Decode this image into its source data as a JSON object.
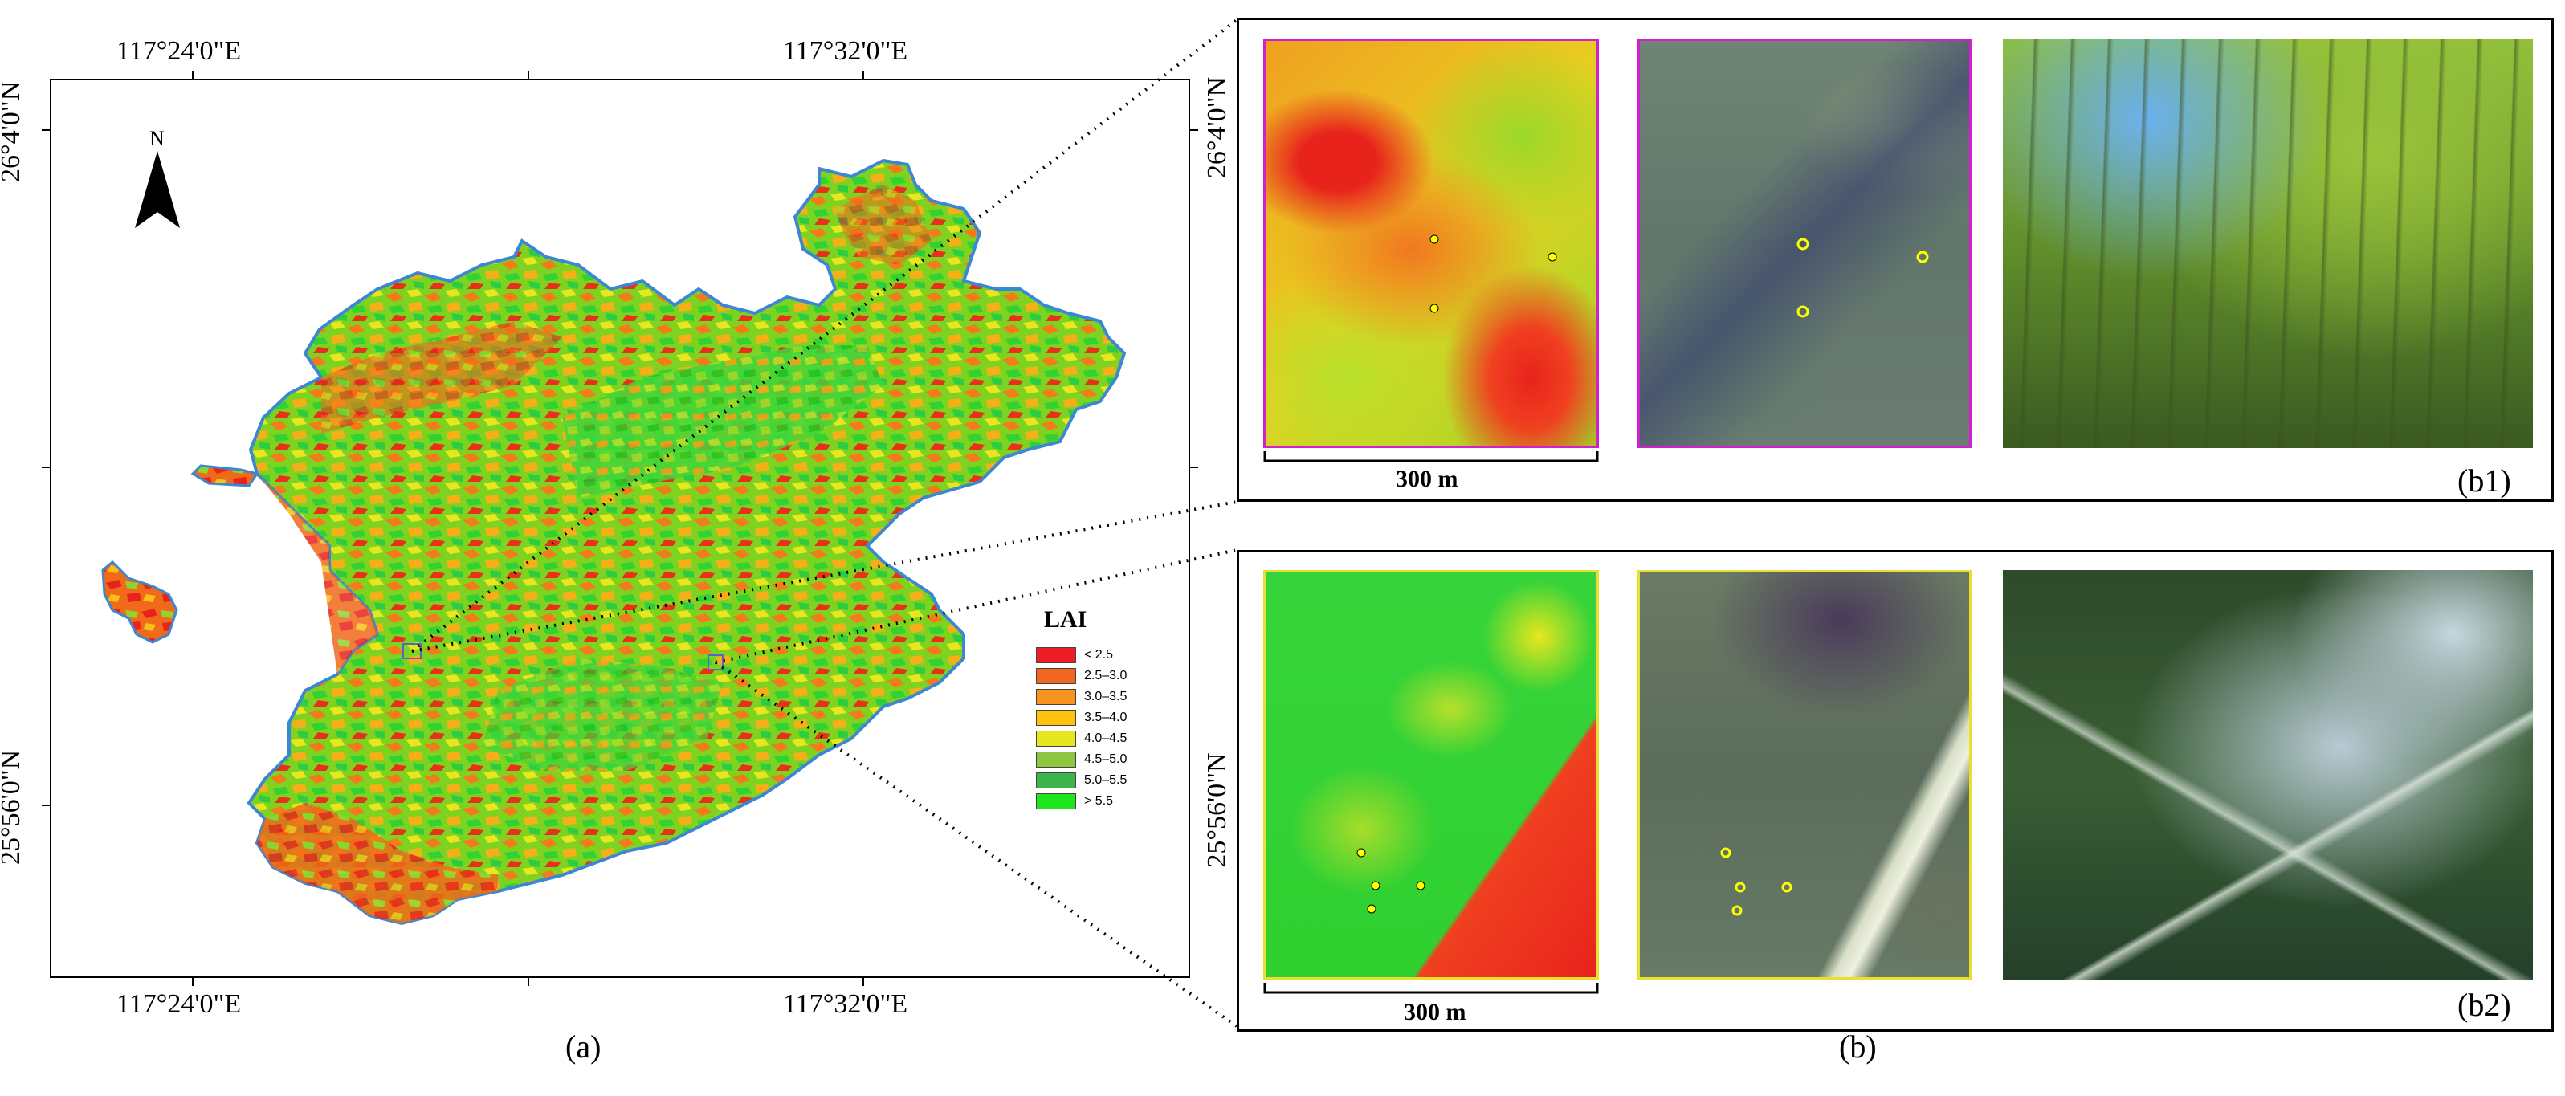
{
  "panel_a": {
    "label": "(a)",
    "top_lon_labels": [
      "117°24'0\"E",
      "117°32'0\"E"
    ],
    "bottom_lon_labels": [
      "117°24'0\"E",
      "117°32'0\"E"
    ],
    "left_lat_labels": [
      "26°4'0\"N",
      "25°56'0\"N"
    ],
    "north_label": "N",
    "legend": {
      "title": "LAI",
      "items": [
        {
          "label": "< 2.5",
          "color": "#ee1c24"
        },
        {
          "label": "2.5–3.0",
          "color": "#f26522"
        },
        {
          "label": "3.0–3.5",
          "color": "#f7941d"
        },
        {
          "label": "3.5–4.0",
          "color": "#ffc20e"
        },
        {
          "label": "4.0–4.5",
          "color": "#e6e61e"
        },
        {
          "label": "4.5–5.0",
          "color": "#8dc63f"
        },
        {
          "label": "5.0–5.5",
          "color": "#39b54a"
        },
        {
          "label": "> 5.5",
          "color": "#1ee61e"
        }
      ]
    }
  },
  "panel_b": {
    "label": "(b)",
    "b1": {
      "label": "(b1)",
      "lat_label": "26°4'0\"N",
      "scale_label": "300 m",
      "frame_color": "#d020d0"
    },
    "b2": {
      "label": "(b2)",
      "lat_label": "25°56'0\"N",
      "scale_label": "300 m",
      "frame_color": "#e8e030"
    }
  }
}
